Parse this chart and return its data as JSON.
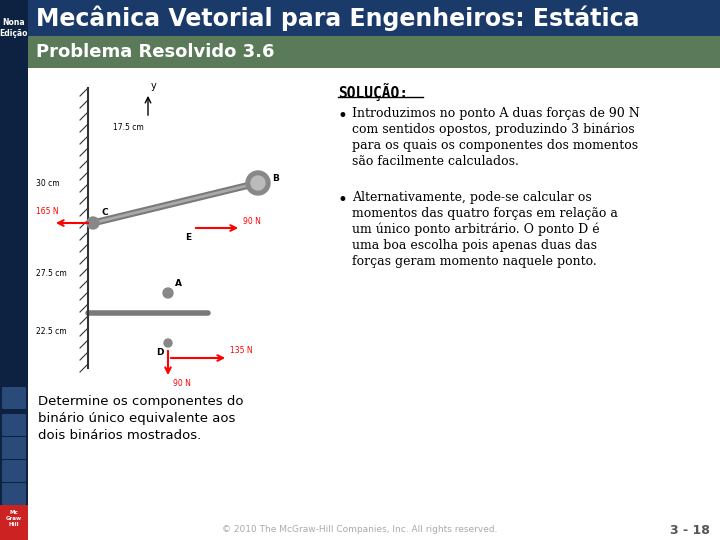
{
  "title": "Mecânica Vetorial para Engenheiros: Estática",
  "subtitle": "Problema Resolvido 3.6",
  "title_bg": "#1a3a6a",
  "subtitle_bg": "#5a7a5a",
  "title_color": "#ffffff",
  "subtitle_color": "#ffffff",
  "sidebar_color": "#0d2240",
  "body_bg": "#ffffff",
  "solucao_label": "SOLUÇÃO:",
  "bullet1_lines": [
    "Introduzimos no ponto A duas forças de 90 N",
    "com sentidos opostos, produzindo 3 binários",
    "para os quais os componentes dos momentos",
    "são facilmente calculados."
  ],
  "bullet2_lines": [
    "Alternativamente, pode-se calcular os",
    "momentos das quatro forças em relação a",
    "um único ponto arbitrário. O ponto D é",
    "uma boa escolha pois apenas duas das",
    "forças geram momento naquele ponto."
  ],
  "caption_lines": [
    "Determine os componentes do",
    "binário único equivalente aos",
    "dois binários mostrados."
  ],
  "footer_text": "© 2010 The McGraw-Hill Companies, Inc. All rights reserved.",
  "page_label": "3 - 18",
  "image_bg": "#f0f0f0"
}
